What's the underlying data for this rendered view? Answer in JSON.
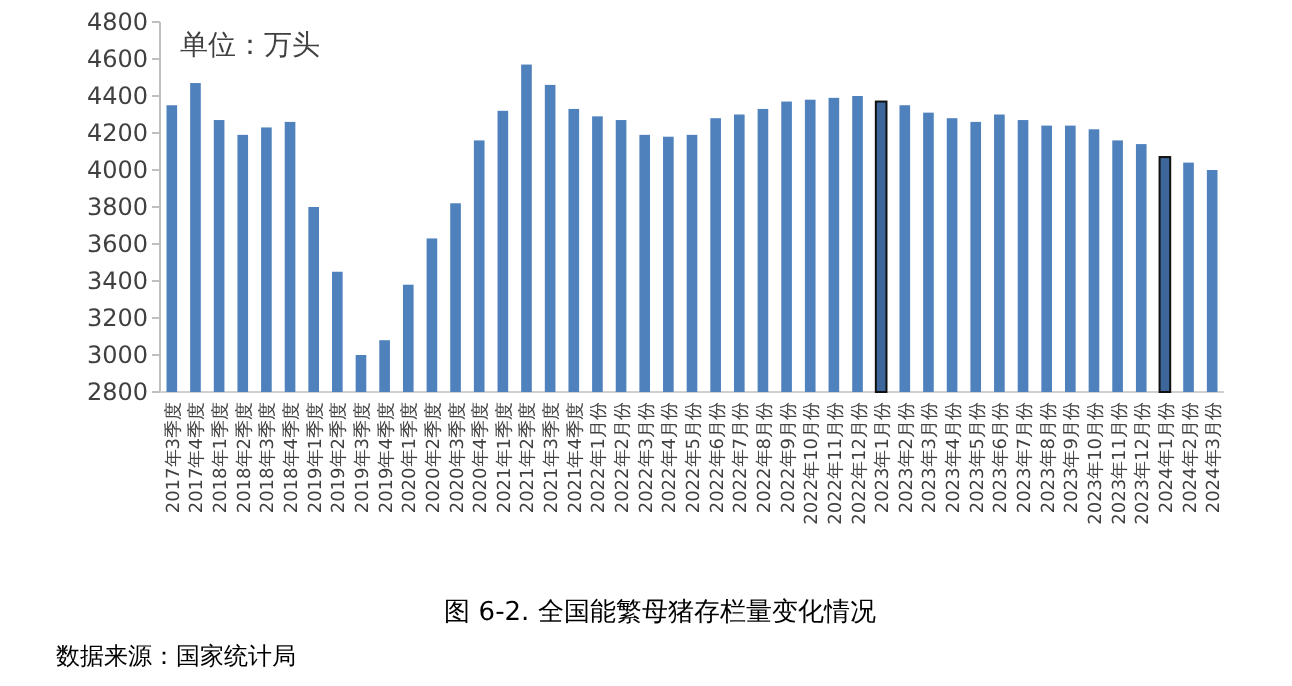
{
  "chart_data": {
    "type": "bar",
    "title": "图 6-2.  全国能繁母猪存栏量变化情况",
    "annotations": [
      "单位：万头",
      "数据来源：国家统计局"
    ],
    "categories": [
      "2017年3季度",
      "2017年4季度",
      "2018年1季度",
      "2018年2季度",
      "2018年3季度",
      "2018年4季度",
      "2019年1季度",
      "2019年2季度",
      "2019年3季度",
      "2019年4季度",
      "2020年1季度",
      "2020年2季度",
      "2020年3季度",
      "2020年4季度",
      "2021年1季度",
      "2021年2季度",
      "2021年3季度",
      "2021年4季度",
      "2022年1月份",
      "2022年2月份",
      "2022年3月份",
      "2022年4月份",
      "2022年5月份",
      "2022年6月份",
      "2022年7月份",
      "2022年8月份",
      "2022年9月份",
      "2022年10月份",
      "2022年11月份",
      "2022年12月份",
      "2023年1月份",
      "2023年2月份",
      "2023年3月份",
      "2023年4月份",
      "2023年5月份",
      "2023年6月份",
      "2023年7月份",
      "2023年8月份",
      "2023年9月份",
      "2023年10月份",
      "2023年11月份",
      "2023年12月份",
      "2024年1月份",
      "2024年2月份",
      "2024年3月份"
    ],
    "values": [
      4350,
      4470,
      4270,
      4190,
      4230,
      4260,
      3800,
      3450,
      3000,
      3080,
      3380,
      3630,
      3820,
      4160,
      4320,
      4570,
      4460,
      4330,
      4290,
      4270,
      4190,
      4180,
      4190,
      4280,
      4300,
      4330,
      4370,
      4380,
      4390,
      4400,
      4370,
      4350,
      4310,
      4280,
      4260,
      4300,
      4270,
      4240,
      4240,
      4220,
      4160,
      4140,
      4070,
      4040,
      4000
    ],
    "colors": [
      "#4f81bd",
      "#4f81bd",
      "#4f81bd",
      "#4f81bd",
      "#4f81bd",
      "#4f81bd",
      "#4f81bd",
      "#4f81bd",
      "#4f81bd",
      "#4f81bd",
      "#4f81bd",
      "#4f81bd",
      "#4f81bd",
      "#4f81bd",
      "#4f81bd",
      "#4f81bd",
      "#4f81bd",
      "#4f81bd",
      "#4f81bd",
      "#4f81bd",
      "#4f81bd",
      "#4f81bd",
      "#4f81bd",
      "#4f81bd",
      "#4f81bd",
      "#4f81bd",
      "#4f81bd",
      "#4f81bd",
      "#4f81bd",
      "#4f81bd",
      "#3d669a",
      "#4f81bd",
      "#4f81bd",
      "#4f81bd",
      "#4f81bd",
      "#4f81bd",
      "#4f81bd",
      "#4f81bd",
      "#4f81bd",
      "#4f81bd",
      "#4f81bd",
      "#4f81bd",
      "#3d669a",
      "#4f81bd",
      "#4f81bd"
    ],
    "ylim": [
      2800,
      4800
    ],
    "yticks": [
      2800,
      3000,
      3200,
      3400,
      3600,
      3800,
      4000,
      4200,
      4400,
      4600,
      4800
    ],
    "grid": false
  }
}
